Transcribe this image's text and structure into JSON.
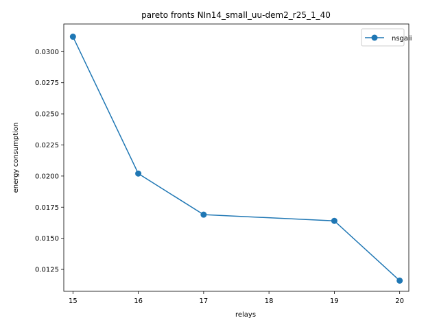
{
  "chart_data": {
    "type": "line",
    "title": "pareto fronts NIn14_small_uu-dem2_r25_1_40",
    "xlabel": "relays",
    "ylabel": "energy consumption",
    "x_ticks": [
      "15",
      "16",
      "17",
      "18",
      "19",
      "20"
    ],
    "y_ticks": [
      "0.0125",
      "0.0150",
      "0.0175",
      "0.0200",
      "0.0225",
      "0.0250",
      "0.0275",
      "0.0300"
    ],
    "xlim": [
      14.86,
      20.14
    ],
    "ylim": [
      0.01074,
      0.03222
    ],
    "grid": false,
    "legend_position": "upper right",
    "series": [
      {
        "name": "nsgaii",
        "color": "#1f77b4",
        "marker": "circle",
        "x": [
          15,
          16,
          17,
          19,
          20
        ],
        "y": [
          0.0312,
          0.0202,
          0.0169,
          0.0164,
          0.0116
        ]
      }
    ]
  }
}
